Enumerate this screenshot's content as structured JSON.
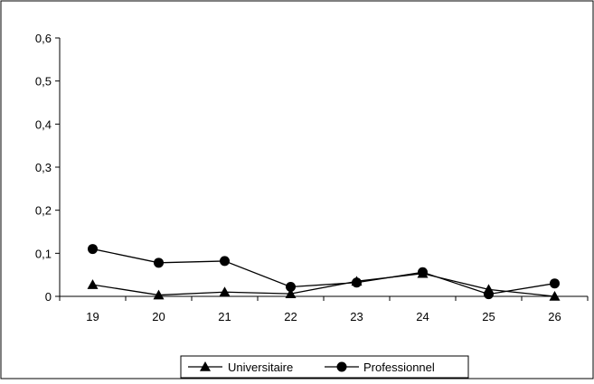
{
  "chart_data": {
    "type": "line",
    "title": "",
    "xlabel": "",
    "ylabel": "",
    "categories": [
      "19",
      "20",
      "21",
      "22",
      "23",
      "24",
      "25",
      "26"
    ],
    "ylim": [
      0,
      0.6
    ],
    "yticks": [
      "0",
      "0,1",
      "0,2",
      "0,3",
      "0,4",
      "0,5",
      "0,6"
    ],
    "ytick_values": [
      0,
      0.1,
      0.2,
      0.3,
      0.4,
      0.5,
      0.6
    ],
    "grid": false,
    "legend_position": "bottom",
    "series": [
      {
        "name": "Universitaire",
        "marker": "triangle",
        "values": [
          0.027,
          0.003,
          0.01,
          0.006,
          0.035,
          0.053,
          0.016,
          0.0
        ]
      },
      {
        "name": "Professionnel",
        "marker": "circle",
        "values": [
          0.11,
          0.078,
          0.082,
          0.022,
          0.032,
          0.056,
          0.005,
          0.03
        ]
      }
    ],
    "colors": {
      "line": "#000000",
      "background": "#ffffff"
    }
  }
}
